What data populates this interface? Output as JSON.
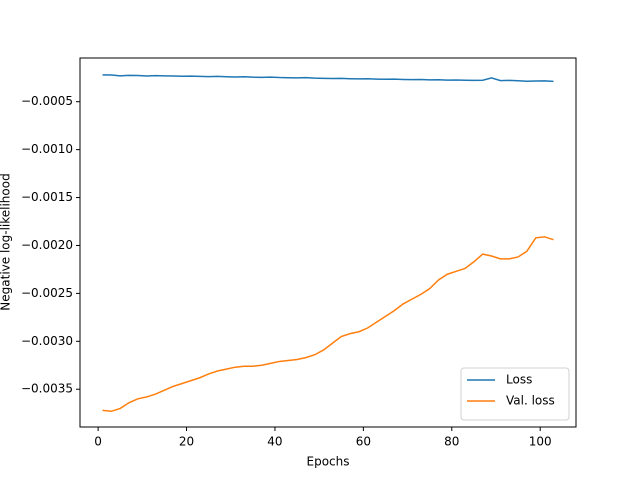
{
  "chart_data": {
    "type": "line",
    "xlabel": "Epochs",
    "ylabel": "Negative log-likelihood",
    "x": [
      1,
      3,
      5,
      7,
      9,
      11,
      13,
      15,
      17,
      19,
      21,
      23,
      25,
      27,
      29,
      31,
      33,
      35,
      37,
      39,
      41,
      43,
      45,
      47,
      49,
      51,
      53,
      55,
      57,
      59,
      61,
      63,
      65,
      67,
      69,
      71,
      73,
      75,
      77,
      79,
      81,
      83,
      85,
      87,
      89,
      91,
      93,
      95,
      97,
      99,
      101,
      103
    ],
    "series": [
      {
        "name": "Loss",
        "color": "#1f77b4",
        "values": [
          -0.00022,
          -0.000222,
          -0.00023,
          -0.000225,
          -0.000226,
          -0.000232,
          -0.000228,
          -0.00023,
          -0.000232,
          -0.000235,
          -0.000233,
          -0.000236,
          -0.000238,
          -0.000236,
          -0.00024,
          -0.000242,
          -0.000239,
          -0.000244,
          -0.000246,
          -0.000243,
          -0.000248,
          -0.00025,
          -0.000252,
          -0.000249,
          -0.000254,
          -0.000256,
          -0.000258,
          -0.000256,
          -0.00026,
          -0.000262,
          -0.00026,
          -0.000264,
          -0.000266,
          -0.000264,
          -0.000268,
          -0.00027,
          -0.000268,
          -0.000272,
          -0.000271,
          -0.000275,
          -0.000273,
          -0.000276,
          -0.000278,
          -0.000276,
          -0.000252,
          -0.00028,
          -0.000278,
          -0.000282,
          -0.000286,
          -0.000284,
          -0.000283,
          -0.000288
        ]
      },
      {
        "name": "Val. loss",
        "color": "#ff7f0e",
        "values": [
          -0.00372,
          -0.00373,
          -0.0037,
          -0.00364,
          -0.0036,
          -0.00358,
          -0.00355,
          -0.00351,
          -0.00347,
          -0.00344,
          -0.00341,
          -0.00338,
          -0.00334,
          -0.00331,
          -0.00329,
          -0.00327,
          -0.00326,
          -0.00326,
          -0.00325,
          -0.00323,
          -0.00321,
          -0.0032,
          -0.00319,
          -0.00317,
          -0.00314,
          -0.00309,
          -0.00302,
          -0.00295,
          -0.00292,
          -0.0029,
          -0.00286,
          -0.0028,
          -0.00274,
          -0.00268,
          -0.00261,
          -0.00256,
          -0.00251,
          -0.00245,
          -0.00236,
          -0.0023,
          -0.00227,
          -0.00224,
          -0.00217,
          -0.00209,
          -0.00211,
          -0.00214,
          -0.00214,
          -0.00212,
          -0.00206,
          -0.00192,
          -0.00191,
          -0.00194
        ]
      }
    ],
    "xlim": [
      -4.1,
      108.1
    ],
    "xticks": [
      0,
      20,
      40,
      60,
      80,
      100
    ],
    "ylim": [
      -0.003894,
      -4.4e-05
    ],
    "yticks": [
      {
        "value": -0.0035,
        "label": "−0.0035"
      },
      {
        "value": -0.003,
        "label": "−0.0030"
      },
      {
        "value": -0.0025,
        "label": "−0.0025"
      },
      {
        "value": -0.002,
        "label": "−0.0020"
      },
      {
        "value": -0.0015,
        "label": "−0.0015"
      },
      {
        "value": -0.001,
        "label": "−0.0010"
      },
      {
        "value": -0.0005,
        "label": "−0.0005"
      }
    ],
    "legend": "lower right"
  }
}
